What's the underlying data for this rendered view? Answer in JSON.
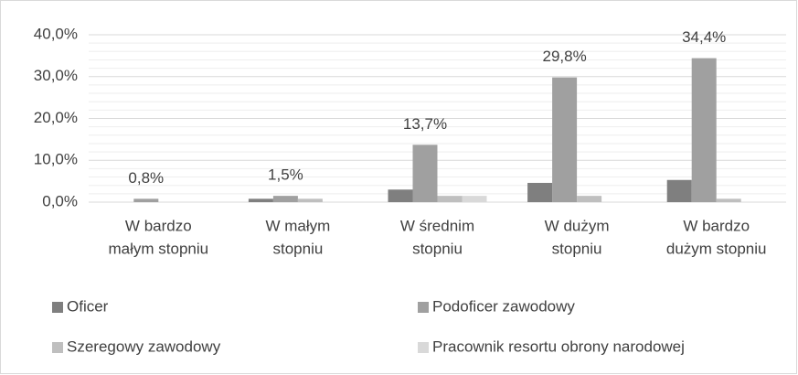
{
  "chart_data": {
    "type": "bar",
    "categories": [
      [
        "W bardzo",
        "małym stopniu"
      ],
      [
        "W małym",
        "stopniu"
      ],
      [
        "W średnim",
        "stopniu"
      ],
      [
        "W dużym",
        "stopniu"
      ],
      [
        "W bardzo",
        "dużym stopniu"
      ]
    ],
    "series": [
      {
        "name": "Oficer",
        "color": "#7f7f7f",
        "values": [
          0,
          0.8,
          3.0,
          4.6,
          5.3
        ]
      },
      {
        "name": "Podoficer zawodowy",
        "color": "#a0a0a0",
        "values": [
          0.8,
          1.5,
          13.7,
          29.8,
          34.4
        ],
        "value_labels": [
          "0,8%",
          "1,5%",
          "13,7%",
          "29,8%",
          "34,4%"
        ]
      },
      {
        "name": "Szeregowy zawodowy",
        "color": "#bfbfbf",
        "values": [
          0,
          0.8,
          1.5,
          1.5,
          0.8
        ]
      },
      {
        "name": "Pracownik resortu obrony narodowej",
        "color": "#d9d9d9",
        "values": [
          0,
          0,
          1.5,
          0,
          0
        ]
      }
    ],
    "ylim": [
      0,
      40
    ],
    "yticks": [
      {
        "value": 0,
        "label": "0,0%"
      },
      {
        "value": 10,
        "label": "10,0%"
      },
      {
        "value": 20,
        "label": "20,0%"
      },
      {
        "value": 30,
        "label": "30,0%"
      },
      {
        "value": 40,
        "label": "40,0%"
      }
    ],
    "minor_yticks": [
      2,
      4,
      6,
      8,
      12,
      14,
      16,
      18,
      22,
      24,
      26,
      28,
      32,
      34,
      36,
      38
    ],
    "grid": true,
    "legend": "bottom"
  }
}
